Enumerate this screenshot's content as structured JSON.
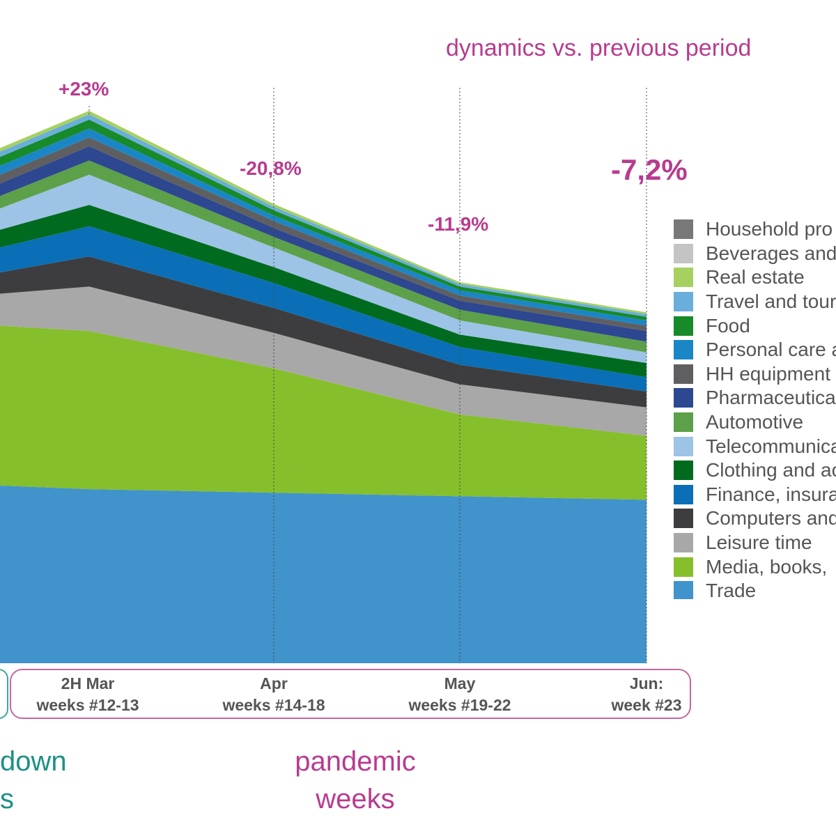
{
  "chart_data": {
    "type": "area",
    "stacked": true,
    "title": "dynamics vs. previous period",
    "x_labels": [
      {
        "line1": "2H Mar",
        "line2": "weeks #12-13"
      },
      {
        "line1": "Apr",
        "line2": "weeks #14-18"
      },
      {
        "line1": "May",
        "line2": "weeks #19-22"
      },
      {
        "line1": "Jun:",
        "line2": "week #23"
      }
    ],
    "dynamics": [
      "+23%",
      "-20,8%",
      "-11,9%",
      "-7,2%"
    ],
    "legend_placement": "right",
    "series": [
      {
        "name": "Trade",
        "color": "#4193cb",
        "values": [
          100,
          98,
          96,
          94,
          92
        ]
      },
      {
        "name": "Media, books,",
        "color": "#85bf2b",
        "values": [
          90,
          89,
          70,
          46,
          36
        ]
      },
      {
        "name": "Leisure time",
        "color": "#a8a8a8",
        "values": [
          18,
          25,
          20,
          17,
          16
        ]
      },
      {
        "name": "Computers and",
        "color": "#3d3d3f",
        "values": [
          12,
          17,
          14,
          11,
          9
        ]
      },
      {
        "name": "Finance, insura",
        "color": "#0a6fb7",
        "values": [
          14,
          17,
          14,
          10,
          8
        ]
      },
      {
        "name": "Clothing and ac",
        "color": "#006b1f",
        "values": [
          10,
          12,
          9,
          7,
          8
        ]
      },
      {
        "name": "Telecommunica",
        "color": "#9dc3e6",
        "values": [
          12,
          17,
          11,
          8,
          6
        ]
      },
      {
        "name": "Automotive",
        "color": "#5ca04a",
        "values": [
          7,
          8,
          6,
          6,
          6
        ]
      },
      {
        "name": "Pharmaceutica",
        "color": "#2d4790",
        "values": [
          7,
          8,
          5,
          5,
          6
        ]
      },
      {
        "name": "HH equipment",
        "color": "#5f5f61",
        "values": [
          5,
          5,
          4,
          3,
          3
        ]
      },
      {
        "name": "Personal care a",
        "color": "#1b86c6",
        "values": [
          5,
          5,
          3,
          3,
          3
        ]
      },
      {
        "name": "Food",
        "color": "#178a29",
        "values": [
          5,
          5,
          3,
          2,
          2
        ]
      },
      {
        "name": "Travel and tour",
        "color": "#6aaedb",
        "values": [
          3,
          3,
          2,
          1.5,
          1.5
        ]
      },
      {
        "name": "Real estate",
        "color": "#a6d160",
        "values": [
          2,
          2,
          1.5,
          1,
          1
        ]
      },
      {
        "name": "Beverages and",
        "color": "#c4c4c4",
        "values": [
          0,
          0,
          0,
          0,
          0
        ]
      },
      {
        "name": "Household pro",
        "color": "#787878",
        "values": [
          0,
          0,
          0,
          0,
          0
        ]
      }
    ]
  },
  "captions": {
    "lockdown_line1": "down",
    "lockdown_line2": "s",
    "pandemic_line1": "pandemic",
    "pandemic_line2": "weeks"
  }
}
